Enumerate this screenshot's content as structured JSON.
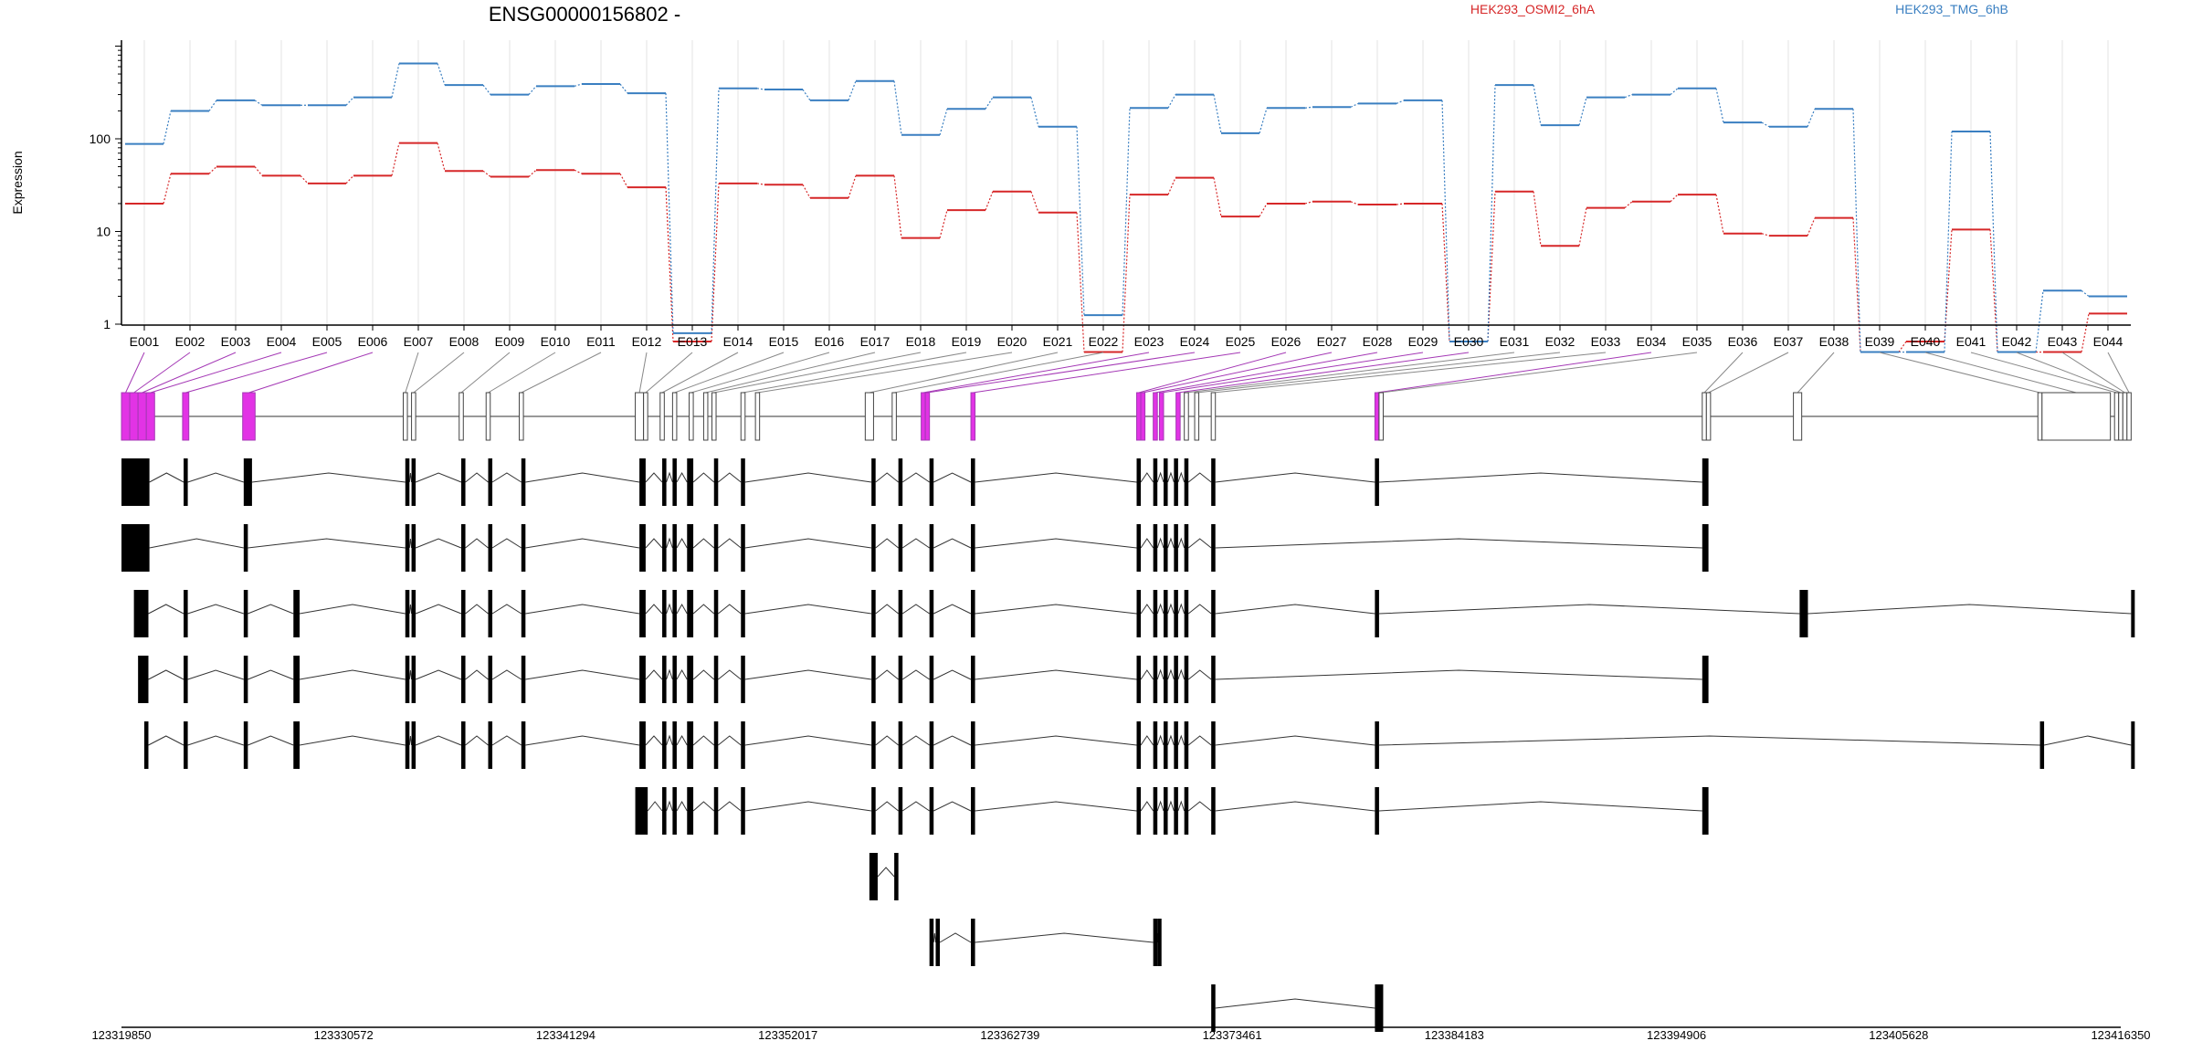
{
  "chart_data": {
    "type": "line",
    "title": "ENSG00000156802 -",
    "ylabel": "Expression",
    "y_scale": "log",
    "y_ticks": [
      "1",
      "10",
      "100"
    ],
    "grid": true,
    "legend_placement": "top-right",
    "categories": [
      "E001",
      "E002",
      "E003",
      "E004",
      "E005",
      "E006",
      "E007",
      "E008",
      "E009",
      "E010",
      "E011",
      "E012",
      "E013",
      "E014",
      "E015",
      "E016",
      "E017",
      "E018",
      "E019",
      "E020",
      "E021",
      "E022",
      "E023",
      "E024",
      "E025",
      "E026",
      "E027",
      "E028",
      "E029",
      "E030",
      "E031",
      "E032",
      "E033",
      "E034",
      "E035",
      "E036",
      "E037",
      "E038",
      "E039",
      "E040",
      "E041",
      "E042",
      "E043",
      "E044"
    ],
    "series": [
      {
        "name": "HEK293_OSMI2_6hA",
        "color": "#d62728",
        "values": [
          20,
          42,
          50,
          40,
          33,
          40,
          90,
          45,
          39,
          46,
          42,
          30,
          0.65,
          33,
          32,
          23,
          40,
          8.5,
          17,
          27,
          16,
          0.5,
          25,
          38,
          14.5,
          20,
          21,
          19.5,
          20,
          0.65,
          27,
          7,
          18,
          21,
          25,
          9.5,
          9,
          14,
          0.5,
          0.65,
          10.5,
          0.5,
          0.5,
          1.3
        ]
      },
      {
        "name": "HEK293_TMG_6hB",
        "color": "#3a7fc1",
        "values": [
          88,
          200,
          260,
          230,
          230,
          280,
          650,
          380,
          300,
          370,
          390,
          310,
          0.8,
          350,
          340,
          260,
          420,
          110,
          210,
          280,
          135,
          1.25,
          215,
          300,
          115,
          215,
          220,
          240,
          260,
          0.65,
          380,
          140,
          280,
          300,
          350,
          150,
          135,
          210,
          0.5,
          0.5,
          120,
          0.5,
          2.3,
          2
        ]
      }
    ],
    "genomic_axis": {
      "tick_labels": [
        "123319850",
        "123330572",
        "123341294",
        "123352017",
        "123362739",
        "123373461",
        "123384183",
        "123394906",
        "123405628",
        "123416350"
      ],
      "start": 123319850,
      "end": 123416350
    },
    "colors": {
      "highlight_exon": "#e233e5",
      "highlight_link": "#a438b5",
      "exon": "#000000",
      "grid": "#e3e3e3",
      "connector": "#888888"
    },
    "exon_ranges_kb": [
      [
        0,
        0.4
      ],
      [
        0.4,
        0.8
      ],
      [
        0.8,
        1.2
      ],
      [
        1.2,
        1.6
      ],
      [
        2.95,
        3.25
      ],
      [
        5.85,
        6.45
      ],
      [
        13.6,
        13.8
      ],
      [
        14.0,
        14.2
      ],
      [
        16.3,
        16.5
      ],
      [
        17.6,
        17.8
      ],
      [
        19.2,
        19.4
      ],
      [
        24.8,
        25.2
      ],
      [
        25.2,
        25.4
      ],
      [
        26.0,
        26.2
      ],
      [
        26.6,
        26.8
      ],
      [
        27.4,
        27.6
      ],
      [
        28.1,
        28.3
      ],
      [
        28.5,
        28.7
      ],
      [
        29.9,
        30.1
      ],
      [
        30.6,
        30.8
      ],
      [
        35.9,
        36.3
      ],
      [
        37.2,
        37.4
      ],
      [
        38.6,
        38.8
      ],
      [
        38.8,
        39.0
      ],
      [
        41.0,
        41.2
      ],
      [
        49.0,
        49.2
      ],
      [
        49.2,
        49.4
      ],
      [
        49.8,
        50.0
      ],
      [
        50.1,
        50.3
      ],
      [
        50.9,
        51.1
      ],
      [
        51.3,
        51.5
      ],
      [
        51.8,
        52.0
      ],
      [
        52.6,
        52.8
      ],
      [
        60.5,
        60.7
      ],
      [
        60.7,
        60.9
      ],
      [
        76.3,
        76.5
      ],
      [
        76.5,
        76.7
      ],
      [
        80.7,
        81.1
      ],
      [
        92.5,
        92.7
      ],
      [
        92.7,
        96.0
      ],
      [
        96.2,
        96.4
      ],
      [
        96.4,
        96.6
      ],
      [
        96.6,
        96.8
      ],
      [
        96.8,
        97.0
      ]
    ],
    "transcripts": [
      [
        [
          0,
          1.35
        ],
        [
          3.0,
          3.2
        ],
        [
          5.9,
          6.3
        ],
        [
          13.7,
          13.9
        ],
        [
          14.0,
          14.2
        ],
        [
          16.4,
          16.6
        ],
        [
          17.7,
          17.9
        ],
        [
          19.3,
          19.5
        ],
        [
          25.0,
          25.3
        ],
        [
          26.1,
          26.3
        ],
        [
          26.6,
          26.8
        ],
        [
          27.3,
          27.6
        ],
        [
          28.6,
          28.8
        ],
        [
          29.9,
          30.1
        ],
        [
          36.2,
          36.4
        ],
        [
          37.5,
          37.7
        ],
        [
          39.0,
          39.2
        ],
        [
          41.0,
          41.2
        ],
        [
          49.0,
          49.2
        ],
        [
          49.8,
          50.0
        ],
        [
          50.3,
          50.5
        ],
        [
          50.8,
          51.0
        ],
        [
          51.3,
          51.5
        ],
        [
          52.6,
          52.8
        ],
        [
          60.5,
          60.7
        ],
        [
          76.3,
          76.6
        ]
      ],
      [
        [
          0,
          1.35
        ],
        [
          5.9,
          6.1
        ],
        [
          13.7,
          13.9
        ],
        [
          14.0,
          14.2
        ],
        [
          16.4,
          16.6
        ],
        [
          17.7,
          17.9
        ],
        [
          19.3,
          19.5
        ],
        [
          25.0,
          25.3
        ],
        [
          26.1,
          26.3
        ],
        [
          26.6,
          26.8
        ],
        [
          27.3,
          27.6
        ],
        [
          28.6,
          28.8
        ],
        [
          29.9,
          30.1
        ],
        [
          36.2,
          36.4
        ],
        [
          37.5,
          37.7
        ],
        [
          39.0,
          39.2
        ],
        [
          41.0,
          41.2
        ],
        [
          49.0,
          49.2
        ],
        [
          49.8,
          50.0
        ],
        [
          50.3,
          50.5
        ],
        [
          50.8,
          51.0
        ],
        [
          51.3,
          51.5
        ],
        [
          52.6,
          52.8
        ],
        [
          76.3,
          76.6
        ]
      ],
      [
        [
          0.6,
          1.3
        ],
        [
          3.0,
          3.2
        ],
        [
          5.9,
          6.1
        ],
        [
          8.3,
          8.6
        ],
        [
          13.7,
          13.9
        ],
        [
          14.0,
          14.2
        ],
        [
          16.4,
          16.6
        ],
        [
          17.7,
          17.9
        ],
        [
          19.3,
          19.5
        ],
        [
          25.0,
          25.3
        ],
        [
          26.1,
          26.3
        ],
        [
          26.6,
          26.8
        ],
        [
          27.3,
          27.6
        ],
        [
          28.6,
          28.8
        ],
        [
          29.9,
          30.1
        ],
        [
          36.2,
          36.4
        ],
        [
          37.5,
          37.7
        ],
        [
          39.0,
          39.2
        ],
        [
          41.0,
          41.2
        ],
        [
          49.0,
          49.2
        ],
        [
          49.8,
          50.0
        ],
        [
          50.3,
          50.5
        ],
        [
          50.8,
          51.0
        ],
        [
          51.3,
          51.5
        ],
        [
          52.6,
          52.8
        ],
        [
          60.5,
          60.7
        ],
        [
          81.0,
          81.4
        ],
        [
          97.0,
          97.1
        ]
      ],
      [
        [
          0.8,
          1.3
        ],
        [
          3.0,
          3.2
        ],
        [
          5.9,
          6.1
        ],
        [
          8.3,
          8.6
        ],
        [
          13.7,
          13.9
        ],
        [
          14.0,
          14.2
        ],
        [
          16.4,
          16.6
        ],
        [
          17.7,
          17.9
        ],
        [
          19.3,
          19.5
        ],
        [
          25.0,
          25.3
        ],
        [
          26.1,
          26.3
        ],
        [
          26.6,
          26.8
        ],
        [
          27.3,
          27.6
        ],
        [
          28.6,
          28.8
        ],
        [
          29.9,
          30.1
        ],
        [
          36.2,
          36.4
        ],
        [
          37.5,
          37.7
        ],
        [
          39.0,
          39.2
        ],
        [
          41.0,
          41.2
        ],
        [
          49.0,
          49.2
        ],
        [
          49.8,
          50.0
        ],
        [
          50.3,
          50.5
        ],
        [
          50.8,
          51.0
        ],
        [
          51.3,
          51.5
        ],
        [
          52.6,
          52.8
        ],
        [
          76.3,
          76.6
        ]
      ],
      [
        [
          1.1,
          1.3
        ],
        [
          3.0,
          3.2
        ],
        [
          5.9,
          6.1
        ],
        [
          8.3,
          8.6
        ],
        [
          13.7,
          13.9
        ],
        [
          14.0,
          14.2
        ],
        [
          16.4,
          16.6
        ],
        [
          17.7,
          17.9
        ],
        [
          19.3,
          19.5
        ],
        [
          25.0,
          25.3
        ],
        [
          26.1,
          26.3
        ],
        [
          26.6,
          26.8
        ],
        [
          27.3,
          27.6
        ],
        [
          28.6,
          28.8
        ],
        [
          29.9,
          30.1
        ],
        [
          36.2,
          36.4
        ],
        [
          37.5,
          37.7
        ],
        [
          39.0,
          39.2
        ],
        [
          41.0,
          41.2
        ],
        [
          49.0,
          49.2
        ],
        [
          49.8,
          50.0
        ],
        [
          50.3,
          50.5
        ],
        [
          50.8,
          51.0
        ],
        [
          51.3,
          51.5
        ],
        [
          52.6,
          52.8
        ],
        [
          60.5,
          60.7
        ],
        [
          92.6,
          92.8
        ],
        [
          97.0,
          97.1
        ]
      ],
      [
        [
          24.8,
          25.4
        ],
        [
          26.1,
          26.3
        ],
        [
          26.6,
          26.8
        ],
        [
          27.3,
          27.6
        ],
        [
          28.6,
          28.8
        ],
        [
          29.9,
          30.1
        ],
        [
          36.2,
          36.4
        ],
        [
          37.5,
          37.7
        ],
        [
          39.0,
          39.2
        ],
        [
          41.0,
          41.2
        ],
        [
          49.0,
          49.2
        ],
        [
          49.8,
          50.0
        ],
        [
          50.3,
          50.5
        ],
        [
          50.8,
          51.0
        ],
        [
          51.3,
          51.5
        ],
        [
          52.6,
          52.8
        ],
        [
          60.5,
          60.7
        ],
        [
          76.3,
          76.6
        ]
      ],
      [
        [
          36.1,
          36.5
        ],
        [
          37.3,
          37.5
        ]
      ],
      [
        [
          39.0,
          39.2
        ],
        [
          39.3,
          39.5
        ],
        [
          41.0,
          41.2
        ],
        [
          49.8,
          50.0
        ],
        [
          50.0,
          50.2
        ]
      ],
      [
        [
          52.6,
          52.8
        ],
        [
          60.5,
          60.9
        ]
      ]
    ]
  }
}
